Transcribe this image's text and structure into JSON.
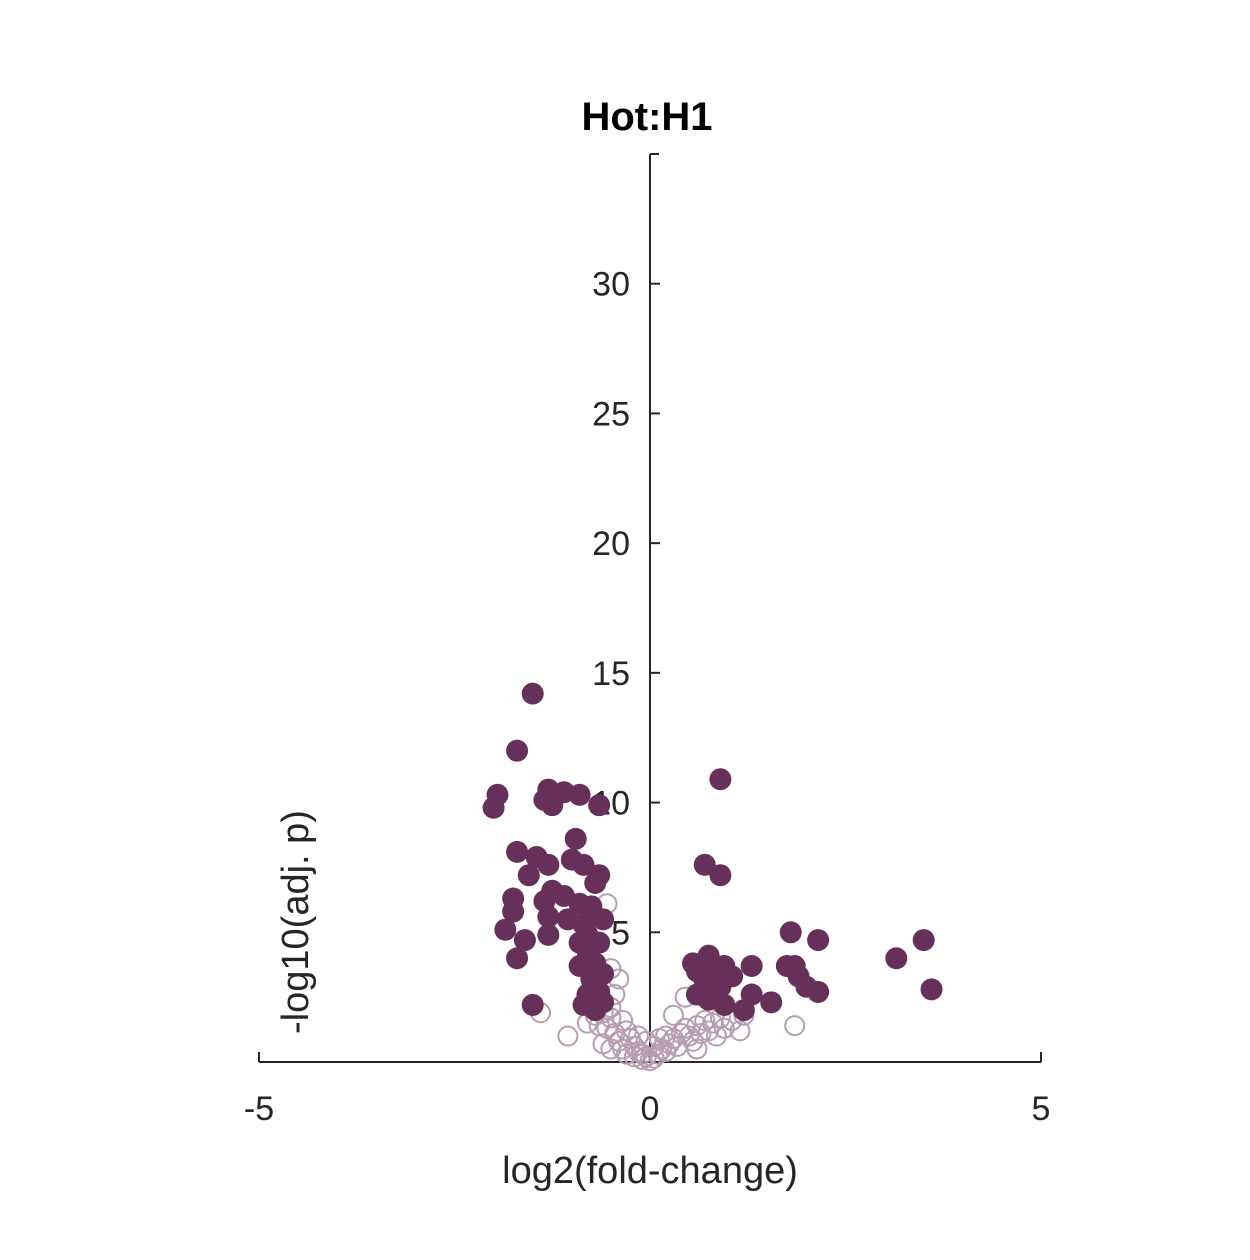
{
  "chart_data": {
    "type": "scatter",
    "title": "Hot:H1",
    "xlabel": "log2(fold-change)",
    "ylabel": "-log10(adj. p)",
    "xlim": [
      -5,
      5
    ],
    "ylim": [
      0,
      35
    ],
    "xticks": [
      -5,
      0,
      5
    ],
    "yticks": [
      5,
      10,
      15,
      20,
      25,
      30
    ],
    "grid": false,
    "colors": {
      "significant": "#66305a",
      "not_significant": "#b89db2",
      "axis": "#262626"
    },
    "series": [
      {
        "style": "filled",
        "color": "#66305a",
        "points": [
          [
            -1.5,
            14.2
          ],
          [
            -1.7,
            12.0
          ],
          [
            -2.0,
            9.8
          ],
          [
            -1.95,
            10.3
          ],
          [
            -1.3,
            10.5
          ],
          [
            -1.35,
            10.1
          ],
          [
            -1.25,
            9.9
          ],
          [
            -1.1,
            10.4
          ],
          [
            -0.9,
            10.3
          ],
          [
            -0.65,
            9.9
          ],
          [
            -0.95,
            8.6
          ],
          [
            -1.7,
            8.1
          ],
          [
            -1.45,
            7.9
          ],
          [
            -1.3,
            7.6
          ],
          [
            -1.55,
            7.2
          ],
          [
            -1.0,
            7.8
          ],
          [
            -0.85,
            7.6
          ],
          [
            -0.65,
            7.2
          ],
          [
            -0.7,
            6.9
          ],
          [
            -1.25,
            6.6
          ],
          [
            -1.1,
            6.4
          ],
          [
            -1.35,
            6.2
          ],
          [
            -1.75,
            6.3
          ],
          [
            -0.9,
            6.1
          ],
          [
            -0.75,
            6.0
          ],
          [
            -1.75,
            5.8
          ],
          [
            -1.3,
            5.6
          ],
          [
            -1.05,
            5.5
          ],
          [
            -0.6,
            5.5
          ],
          [
            -0.85,
            5.3
          ],
          [
            -1.85,
            5.1
          ],
          [
            -1.3,
            4.9
          ],
          [
            -1.6,
            4.7
          ],
          [
            -0.8,
            4.9
          ],
          [
            -0.65,
            4.6
          ],
          [
            -0.9,
            4.6
          ],
          [
            -1.7,
            4.0
          ],
          [
            -0.8,
            4.0
          ],
          [
            -0.7,
            3.8
          ],
          [
            -0.9,
            3.7
          ],
          [
            -0.6,
            3.4
          ],
          [
            -0.75,
            3.2
          ],
          [
            -0.65,
            2.7
          ],
          [
            -0.8,
            2.6
          ],
          [
            -1.5,
            2.2
          ],
          [
            -0.85,
            2.2
          ],
          [
            -0.7,
            2.0
          ],
          [
            -0.6,
            2.3
          ],
          [
            0.9,
            10.9
          ],
          [
            0.7,
            7.6
          ],
          [
            0.9,
            7.2
          ],
          [
            0.55,
            3.8
          ],
          [
            0.75,
            4.1
          ],
          [
            0.6,
            3.5
          ],
          [
            0.85,
            3.6
          ],
          [
            0.95,
            3.7
          ],
          [
            1.05,
            3.3
          ],
          [
            0.7,
            3.1
          ],
          [
            0.9,
            2.9
          ],
          [
            0.6,
            2.6
          ],
          [
            0.75,
            2.4
          ],
          [
            0.95,
            2.2
          ],
          [
            1.2,
            2.0
          ],
          [
            1.3,
            3.7
          ],
          [
            1.3,
            2.6
          ],
          [
            1.55,
            2.3
          ],
          [
            1.8,
            5.0
          ],
          [
            2.15,
            4.7
          ],
          [
            1.75,
            3.7
          ],
          [
            1.85,
            3.7
          ],
          [
            1.9,
            3.3
          ],
          [
            2.0,
            2.9
          ],
          [
            2.15,
            2.7
          ],
          [
            3.15,
            4.0
          ],
          [
            3.5,
            4.7
          ],
          [
            3.6,
            2.8
          ]
        ]
      },
      {
        "style": "open",
        "color": "#b89db2",
        "points": [
          [
            -1.4,
            1.9
          ],
          [
            -1.05,
            1.0
          ],
          [
            -0.55,
            6.1
          ],
          [
            -0.5,
            3.6
          ],
          [
            -0.45,
            2.6
          ],
          [
            -0.6,
            1.9
          ],
          [
            -0.5,
            1.7
          ],
          [
            -0.35,
            1.6
          ],
          [
            -0.55,
            1.3
          ],
          [
            -0.45,
            1.1
          ],
          [
            -0.3,
            1.2
          ],
          [
            -0.6,
            0.7
          ],
          [
            -0.4,
            0.8
          ],
          [
            -0.25,
            0.9
          ],
          [
            -0.5,
            0.5
          ],
          [
            -0.35,
            0.5
          ],
          [
            -0.2,
            0.6
          ],
          [
            -0.15,
            0.4
          ],
          [
            -0.3,
            0.3
          ],
          [
            -0.1,
            0.3
          ],
          [
            -0.2,
            0.2
          ],
          [
            -0.05,
            0.2
          ],
          [
            -0.1,
            0.1
          ],
          [
            0.0,
            0.05
          ],
          [
            0.05,
            0.15
          ],
          [
            -0.7,
            1.8
          ],
          [
            -0.65,
            1.4
          ],
          [
            -0.8,
            1.5
          ],
          [
            -0.4,
            3.2
          ],
          [
            -0.5,
            2.1
          ],
          [
            0.1,
            0.3
          ],
          [
            0.15,
            0.5
          ],
          [
            0.2,
            0.4
          ],
          [
            0.25,
            0.7
          ],
          [
            0.3,
            0.9
          ],
          [
            0.35,
            0.6
          ],
          [
            0.4,
            1.1
          ],
          [
            0.45,
            1.3
          ],
          [
            0.5,
            1.0
          ],
          [
            0.55,
            0.8
          ],
          [
            0.6,
            1.4
          ],
          [
            0.65,
            1.1
          ],
          [
            0.7,
            1.6
          ],
          [
            0.75,
            1.2
          ],
          [
            0.8,
            1.5
          ],
          [
            0.85,
            1.0
          ],
          [
            0.9,
            1.7
          ],
          [
            0.95,
            1.3
          ],
          [
            1.05,
            1.6
          ],
          [
            1.2,
            1.8
          ],
          [
            1.15,
            1.2
          ],
          [
            0.45,
            2.5
          ],
          [
            0.3,
            1.8
          ],
          [
            0.2,
            1.0
          ],
          [
            0.6,
            0.5
          ],
          [
            0.05,
            0.6
          ],
          [
            -0.05,
            0.8
          ],
          [
            0.12,
            0.9
          ],
          [
            1.85,
            1.4
          ],
          [
            -0.15,
            1.0
          ]
        ]
      }
    ]
  }
}
